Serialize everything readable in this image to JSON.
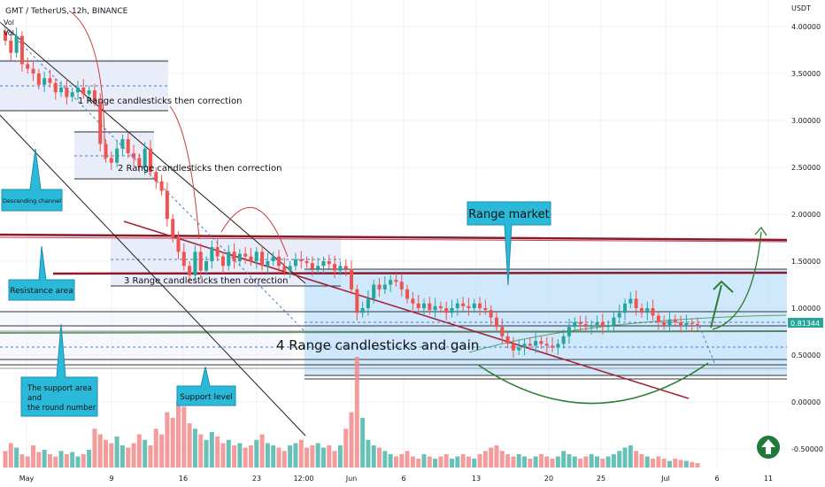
{
  "header": {
    "symbol_line": "GMT / TetherUS, 12h, BINANCE",
    "vol_label_1": "Vol",
    "vol_label_2": "Vol"
  },
  "price_axis": {
    "currency": "USDT",
    "ticks": [
      "4.00000",
      "3.50000",
      "3.00000",
      "2.50000",
      "2.00000",
      "1.50000",
      "1.00000",
      "0.50000",
      "0.00000",
      "-0.50000"
    ],
    "current_price": "0.81344"
  },
  "time_axis": {
    "ticks": [
      "May",
      "9",
      "16",
      "23",
      "12:00",
      "Jun",
      "6",
      "13",
      "20",
      "25",
      "Jul",
      "6",
      "11"
    ]
  },
  "annotations": {
    "range1": "1 Range candlesticks then correction",
    "range2": "2 Range candlesticks then correction",
    "range3": "3 Range candlesticks then correction",
    "range4": "4 Range candlesticks and gain",
    "descending_channel": "Descending channel",
    "resistance_area": "Resistance area",
    "support_area_l1": "The support area",
    "support_area_l2": "and",
    "support_area_l3": "the round number",
    "support_level": "Support level",
    "range_market": "Range market"
  },
  "colors": {
    "up": "#26a69a",
    "down": "#ef5350",
    "vol_up": "#4db6ac",
    "vol_down": "#f28b8b",
    "callout_fill": "#2bb9d9",
    "resistance_line": "#8b1a2b",
    "range_box": "#bbdefb",
    "arc": "#cc3a3a",
    "projection": "#2e7d32",
    "price_badge": "#26a69a"
  },
  "chart_data": {
    "type": "candlestick",
    "title": "GMT / TetherUS, 12h, BINANCE",
    "ylabel": "USDT",
    "ylim": [
      -0.7,
      4.2
    ],
    "x_ticks": [
      "May",
      "9",
      "16",
      "23",
      "12:00",
      "Jun",
      "6",
      "13",
      "20",
      "25",
      "Jul",
      "6",
      "11"
    ],
    "close": [
      3.85,
      3.72,
      3.9,
      3.6,
      3.55,
      3.5,
      3.38,
      3.45,
      3.4,
      3.3,
      3.35,
      3.25,
      3.3,
      3.35,
      3.28,
      3.32,
      3.2,
      2.75,
      2.6,
      2.55,
      2.7,
      2.8,
      2.65,
      2.6,
      2.5,
      2.7,
      2.45,
      2.35,
      2.25,
      1.95,
      1.75,
      1.6,
      1.45,
      1.35,
      1.6,
      1.4,
      1.5,
      1.65,
      1.55,
      1.45,
      1.6,
      1.5,
      1.58,
      1.55,
      1.5,
      1.6,
      1.45,
      1.5,
      1.55,
      1.45,
      1.4,
      1.45,
      1.52,
      1.5,
      1.48,
      1.42,
      1.45,
      1.5,
      1.47,
      1.4,
      1.45,
      1.42,
      1.2,
      0.95,
      1.0,
      1.1,
      1.25,
      1.2,
      1.25,
      1.3,
      1.28,
      1.2,
      1.1,
      1.05,
      1.0,
      1.05,
      0.98,
      1.02,
      1.0,
      0.95,
      1.0,
      1.05,
      1.02,
      1.0,
      1.05,
      1.0,
      0.98,
      0.9,
      0.8,
      0.7,
      0.62,
      0.55,
      0.58,
      0.62,
      0.6,
      0.65,
      0.62,
      0.6,
      0.58,
      0.62,
      0.7,
      0.8,
      0.85,
      0.83,
      0.8,
      0.82,
      0.85,
      0.8,
      0.82,
      0.9,
      0.95,
      1.05,
      1.1,
      1.0,
      0.95,
      1.0,
      0.92,
      0.85,
      0.82,
      0.88,
      0.85,
      0.82,
      0.84,
      0.83,
      0.81
    ],
    "volume": [
      0.15,
      0.22,
      0.18,
      0.12,
      0.1,
      0.2,
      0.14,
      0.16,
      0.12,
      0.1,
      0.15,
      0.12,
      0.14,
      0.1,
      0.12,
      0.16,
      0.35,
      0.3,
      0.25,
      0.22,
      0.28,
      0.2,
      0.18,
      0.22,
      0.3,
      0.25,
      0.2,
      0.35,
      0.3,
      0.5,
      0.45,
      0.6,
      0.55,
      0.4,
      0.35,
      0.3,
      0.25,
      0.32,
      0.28,
      0.22,
      0.25,
      0.2,
      0.22,
      0.18,
      0.2,
      0.25,
      0.3,
      0.22,
      0.2,
      0.18,
      0.15,
      0.2,
      0.22,
      0.25,
      0.18,
      0.2,
      0.22,
      0.18,
      0.2,
      0.15,
      0.2,
      0.35,
      0.5,
      1.0,
      0.45,
      0.25,
      0.2,
      0.18,
      0.15,
      0.12,
      0.1,
      0.12,
      0.15,
      0.1,
      0.08,
      0.12,
      0.1,
      0.08,
      0.1,
      0.12,
      0.08,
      0.1,
      0.12,
      0.1,
      0.08,
      0.12,
      0.15,
      0.18,
      0.2,
      0.15,
      0.12,
      0.1,
      0.12,
      0.1,
      0.08,
      0.1,
      0.12,
      0.1,
      0.08,
      0.1,
      0.15,
      0.12,
      0.1,
      0.08,
      0.1,
      0.12,
      0.1,
      0.08,
      0.1,
      0.12,
      0.15,
      0.18,
      0.2,
      0.15,
      0.12,
      0.1,
      0.08,
      0.1,
      0.08,
      0.06,
      0.08,
      0.07,
      0.06,
      0.05,
      0.04
    ]
  }
}
